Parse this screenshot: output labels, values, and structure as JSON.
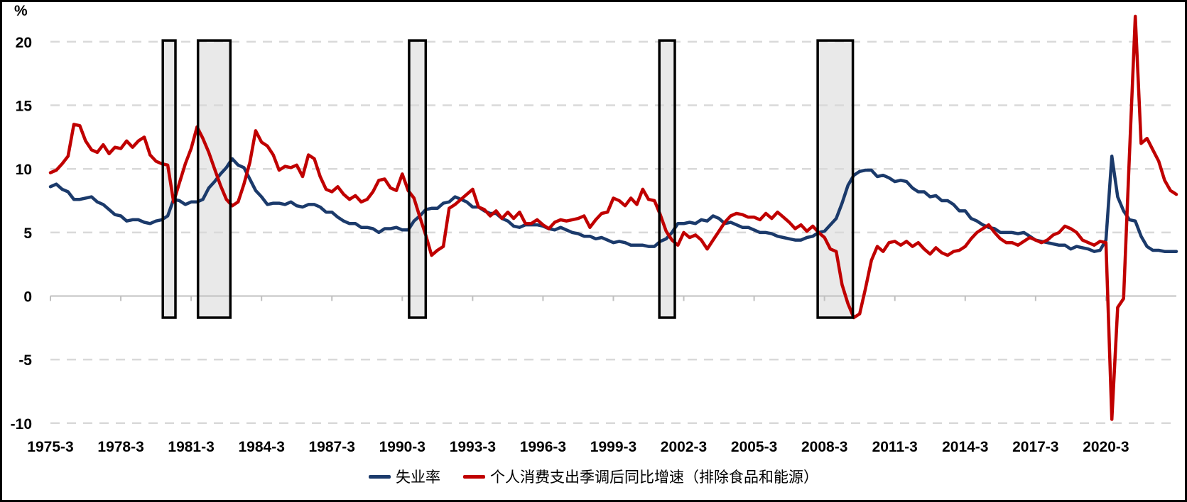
{
  "chart_data": {
    "type": "line",
    "title": "",
    "ylabel_unit": "%",
    "xlim": [
      1975.25,
      2023.25
    ],
    "ylim": [
      -10,
      22.5
    ],
    "grid": "horizontal-dashed",
    "legend_position": "bottom-center",
    "x_start": 1975.25,
    "x_step": 0.25,
    "y_ticks": [
      20,
      15,
      10,
      5,
      0,
      -5,
      -10
    ],
    "x_ticks": [
      {
        "t": 1975.25,
        "label": "1975-3"
      },
      {
        "t": 1978.25,
        "label": "1978-3"
      },
      {
        "t": 1981.25,
        "label": "1981-3"
      },
      {
        "t": 1984.25,
        "label": "1984-3"
      },
      {
        "t": 1987.25,
        "label": "1987-3"
      },
      {
        "t": 1990.25,
        "label": "1990-3"
      },
      {
        "t": 1993.25,
        "label": "1993-3"
      },
      {
        "t": 1996.25,
        "label": "1996-3"
      },
      {
        "t": 1999.25,
        "label": "1999-3"
      },
      {
        "t": 2002.25,
        "label": "2002-3"
      },
      {
        "t": 2005.25,
        "label": "2005-3"
      },
      {
        "t": 2008.25,
        "label": "2008-3"
      },
      {
        "t": 2011.25,
        "label": "2011-3"
      },
      {
        "t": 2014.25,
        "label": "2014-3"
      },
      {
        "t": 2017.25,
        "label": "2017-3"
      },
      {
        "t": 2020.25,
        "label": "2020-3"
      }
    ],
    "recession_bands": {
      "fill": "#E9E9E9",
      "border": "#000000",
      "y_top": 20.1,
      "y_bottom": -1.7,
      "spans": [
        [
          1980.04,
          1980.58
        ],
        [
          1981.54,
          1982.92
        ],
        [
          1990.54,
          1991.25
        ],
        [
          2001.21,
          2001.87
        ],
        [
          2007.96,
          2009.46
        ]
      ]
    },
    "series": [
      {
        "id": "unemployment",
        "name": "失业率",
        "color": "#1B3A6B",
        "values": [
          8.6,
          8.8,
          8.4,
          8.2,
          7.6,
          7.6,
          7.7,
          7.8,
          7.4,
          7.2,
          6.8,
          6.4,
          6.3,
          5.9,
          6.0,
          6.0,
          5.8,
          5.7,
          5.9,
          6.0,
          6.3,
          7.6,
          7.5,
          7.2,
          7.4,
          7.4,
          7.6,
          8.5,
          9.0,
          9.6,
          10.1,
          10.8,
          10.3,
          10.1,
          9.2,
          8.3,
          7.8,
          7.2,
          7.3,
          7.3,
          7.2,
          7.4,
          7.1,
          7.0,
          7.2,
          7.2,
          7.0,
          6.6,
          6.6,
          6.2,
          5.9,
          5.7,
          5.7,
          5.4,
          5.4,
          5.3,
          5.0,
          5.3,
          5.3,
          5.4,
          5.2,
          5.2,
          5.9,
          6.3,
          6.8,
          6.9,
          6.9,
          7.3,
          7.4,
          7.8,
          7.6,
          7.4,
          7.0,
          7.0,
          6.7,
          6.5,
          6.5,
          6.1,
          5.9,
          5.5,
          5.4,
          5.6,
          5.6,
          5.6,
          5.5,
          5.3,
          5.2,
          5.4,
          5.2,
          5.0,
          4.9,
          4.7,
          4.7,
          4.5,
          4.6,
          4.4,
          4.2,
          4.3,
          4.2,
          4.0,
          4.0,
          4.0,
          3.9,
          3.9,
          4.3,
          4.5,
          5.0,
          5.7,
          5.7,
          5.8,
          5.7,
          6.0,
          5.9,
          6.3,
          6.1,
          5.7,
          5.8,
          5.6,
          5.4,
          5.4,
          5.2,
          5.0,
          5.0,
          4.9,
          4.7,
          4.6,
          4.5,
          4.4,
          4.4,
          4.6,
          4.7,
          5.0,
          5.1,
          5.6,
          6.1,
          7.3,
          8.7,
          9.5,
          9.8,
          9.9,
          9.9,
          9.4,
          9.5,
          9.3,
          9.0,
          9.1,
          9.0,
          8.5,
          8.2,
          8.2,
          7.8,
          7.9,
          7.5,
          7.5,
          7.2,
          6.7,
          6.7,
          6.1,
          5.9,
          5.6,
          5.4,
          5.3,
          5.0,
          5.0,
          5.0,
          4.9,
          5.0,
          4.7,
          4.4,
          4.3,
          4.2,
          4.1,
          4.0,
          4.0,
          3.7,
          3.9,
          3.8,
          3.7,
          3.5,
          3.6,
          4.4,
          11.0,
          7.8,
          6.7,
          6.0,
          5.9,
          4.7,
          3.9,
          3.6,
          3.6,
          3.5,
          3.5,
          3.5
        ]
      },
      {
        "id": "pce-growth",
        "name": "个人消费支出季调后同比增速（排除食品和能源）",
        "color": "#C00000",
        "values": [
          9.7,
          9.9,
          10.4,
          11.0,
          13.5,
          13.4,
          12.2,
          11.5,
          11.3,
          11.9,
          11.2,
          11.7,
          11.6,
          12.2,
          11.7,
          12.2,
          12.5,
          11.1,
          10.6,
          10.4,
          10.3,
          7.4,
          8.9,
          10.4,
          11.6,
          13.3,
          12.4,
          11.3,
          10.0,
          8.7,
          7.6,
          7.1,
          7.4,
          8.8,
          10.5,
          13.0,
          12.1,
          11.8,
          11.1,
          9.9,
          10.2,
          10.1,
          10.3,
          9.4,
          11.1,
          10.8,
          9.4,
          8.4,
          8.2,
          8.6,
          8.0,
          7.6,
          7.9,
          7.4,
          7.6,
          8.2,
          9.1,
          9.2,
          8.5,
          8.3,
          9.6,
          8.3,
          7.7,
          6.2,
          4.8,
          3.2,
          3.6,
          3.9,
          6.9,
          7.2,
          7.6,
          8.0,
          8.4,
          7.0,
          6.8,
          6.3,
          6.7,
          6.1,
          6.6,
          6.1,
          6.6,
          5.7,
          5.7,
          6.0,
          5.6,
          5.3,
          5.8,
          6.0,
          5.9,
          6.0,
          6.1,
          6.3,
          5.4,
          6.0,
          6.5,
          6.6,
          7.7,
          7.5,
          7.1,
          7.7,
          7.2,
          8.4,
          7.6,
          7.5,
          6.4,
          5.1,
          4.4,
          4.0,
          5.0,
          4.6,
          4.8,
          4.4,
          3.7,
          4.4,
          5.1,
          5.8,
          6.3,
          6.5,
          6.4,
          6.2,
          6.2,
          6.0,
          6.5,
          6.1,
          6.6,
          6.2,
          5.8,
          5.3,
          5.6,
          5.1,
          5.5,
          5.0,
          4.6,
          3.7,
          3.5,
          0.9,
          -0.6,
          -1.7,
          -1.4,
          0.6,
          2.8,
          3.9,
          3.5,
          4.2,
          4.3,
          4.0,
          4.3,
          3.9,
          4.2,
          3.7,
          3.3,
          3.8,
          3.4,
          3.2,
          3.5,
          3.6,
          3.9,
          4.5,
          5.0,
          5.3,
          5.6,
          5.0,
          4.5,
          4.2,
          4.2,
          4.0,
          4.3,
          4.6,
          4.4,
          4.2,
          4.4,
          4.8,
          5.0,
          5.5,
          5.3,
          5.0,
          4.4,
          4.2,
          4.0,
          4.3,
          4.2,
          -9.7,
          -0.9,
          -0.2,
          11.0,
          22.0,
          12.0,
          12.4,
          11.5,
          10.6,
          9.1,
          8.3,
          8.0
        ]
      }
    ],
    "colors": {
      "gridline": "#D9D9D9",
      "zero_axis": "#C0C0C0",
      "text": "#000000",
      "background": "#FFFFFF",
      "figure_border": "#000000"
    }
  }
}
